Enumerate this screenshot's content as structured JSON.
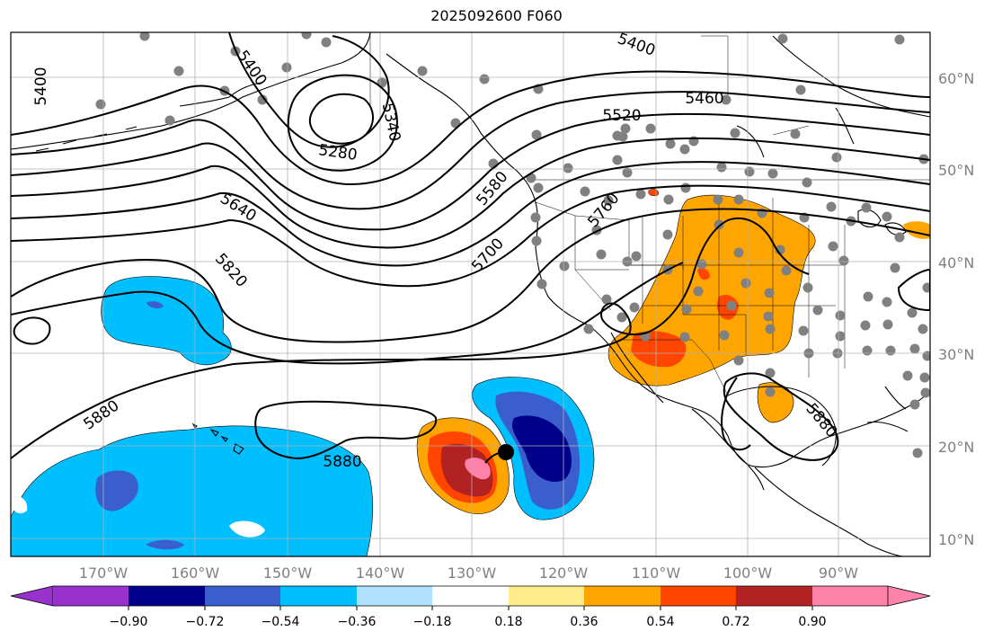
{
  "title": "2025092600 F060",
  "lat_labels": [
    "60°N",
    "50°N",
    "40°N",
    "30°N",
    "20°N",
    "10°N"
  ],
  "lon_labels": [
    "170°W",
    "160°W",
    "150°W",
    "140°W",
    "130°W",
    "120°W",
    "110°W",
    "100°W",
    "90°W"
  ],
  "contour_labels": [
    "5400",
    "5400",
    "5400",
    "5340",
    "5280",
    "5460",
    "5520",
    "5580",
    "5640",
    "5700",
    "5760",
    "5820",
    "5880",
    "5880",
    "5880"
  ],
  "colorbar": {
    "ticks": [
      "−0.90",
      "−0.72",
      "−0.54",
      "−0.36",
      "−0.18",
      "0.18",
      "0.36",
      "0.54",
      "0.72",
      "0.90"
    ],
    "colors": [
      "#9932cc",
      "#00008b",
      "#3a5fcd",
      "#00bfff",
      "#b0e2ff",
      "#ffffff",
      "#ffec8b",
      "#ffa500",
      "#ff4500",
      "#b22222",
      "#ff82ab",
      "#ff82ab"
    ]
  }
}
